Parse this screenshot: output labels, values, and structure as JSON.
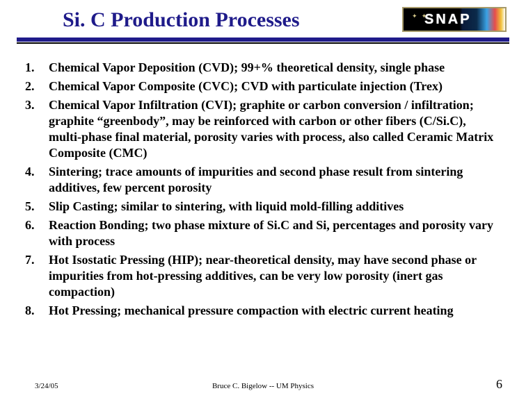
{
  "header": {
    "title": "Si. C Production Processes",
    "title_color": "#1f1b8a",
    "title_fontsize": 30,
    "rule_color": "#1f1b8a",
    "logo_text": "SNAP"
  },
  "list": {
    "item_fontsize": 18,
    "items": [
      {
        "n": "1.",
        "text": "Chemical Vapor Deposition (CVD);  99+% theoretical density, single phase"
      },
      {
        "n": "2.",
        "text": "Chemical Vapor Composite (CVC); CVD with particulate injection (Trex)"
      },
      {
        "n": "3.",
        "text": "Chemical Vapor Infiltration (CVI); graphite or carbon conversion / infiltration; graphite “greenbody”, may be reinforced with carbon or other fibers (C/Si.C), multi-phase final material, porosity varies with process, also called Ceramic Matrix Composite (CMC)"
      },
      {
        "n": "4.",
        "text": "Sintering; trace amounts of impurities and second phase result from sintering additives, few percent porosity"
      },
      {
        "n": "5.",
        "text": "Slip Casting; similar to sintering, with liquid mold-filling additives"
      },
      {
        "n": "6.",
        "text": "Reaction Bonding; two phase mixture of Si.C and Si, percentages and porosity vary with process"
      },
      {
        "n": "7.",
        "text": "Hot Isostatic Pressing (HIP); near-theoretical density, may have second phase or impurities from hot-pressing additives, can be very low porosity (inert gas compaction)"
      },
      {
        "n": "8.",
        "text": "Hot Pressing; mechanical pressure compaction with electric current heating"
      }
    ]
  },
  "footer": {
    "date": "3/24/05",
    "center": "Bruce C. Bigelow -- UM Physics",
    "page": "6",
    "date_fontsize": 11,
    "center_fontsize": 11,
    "page_fontsize": 18
  }
}
